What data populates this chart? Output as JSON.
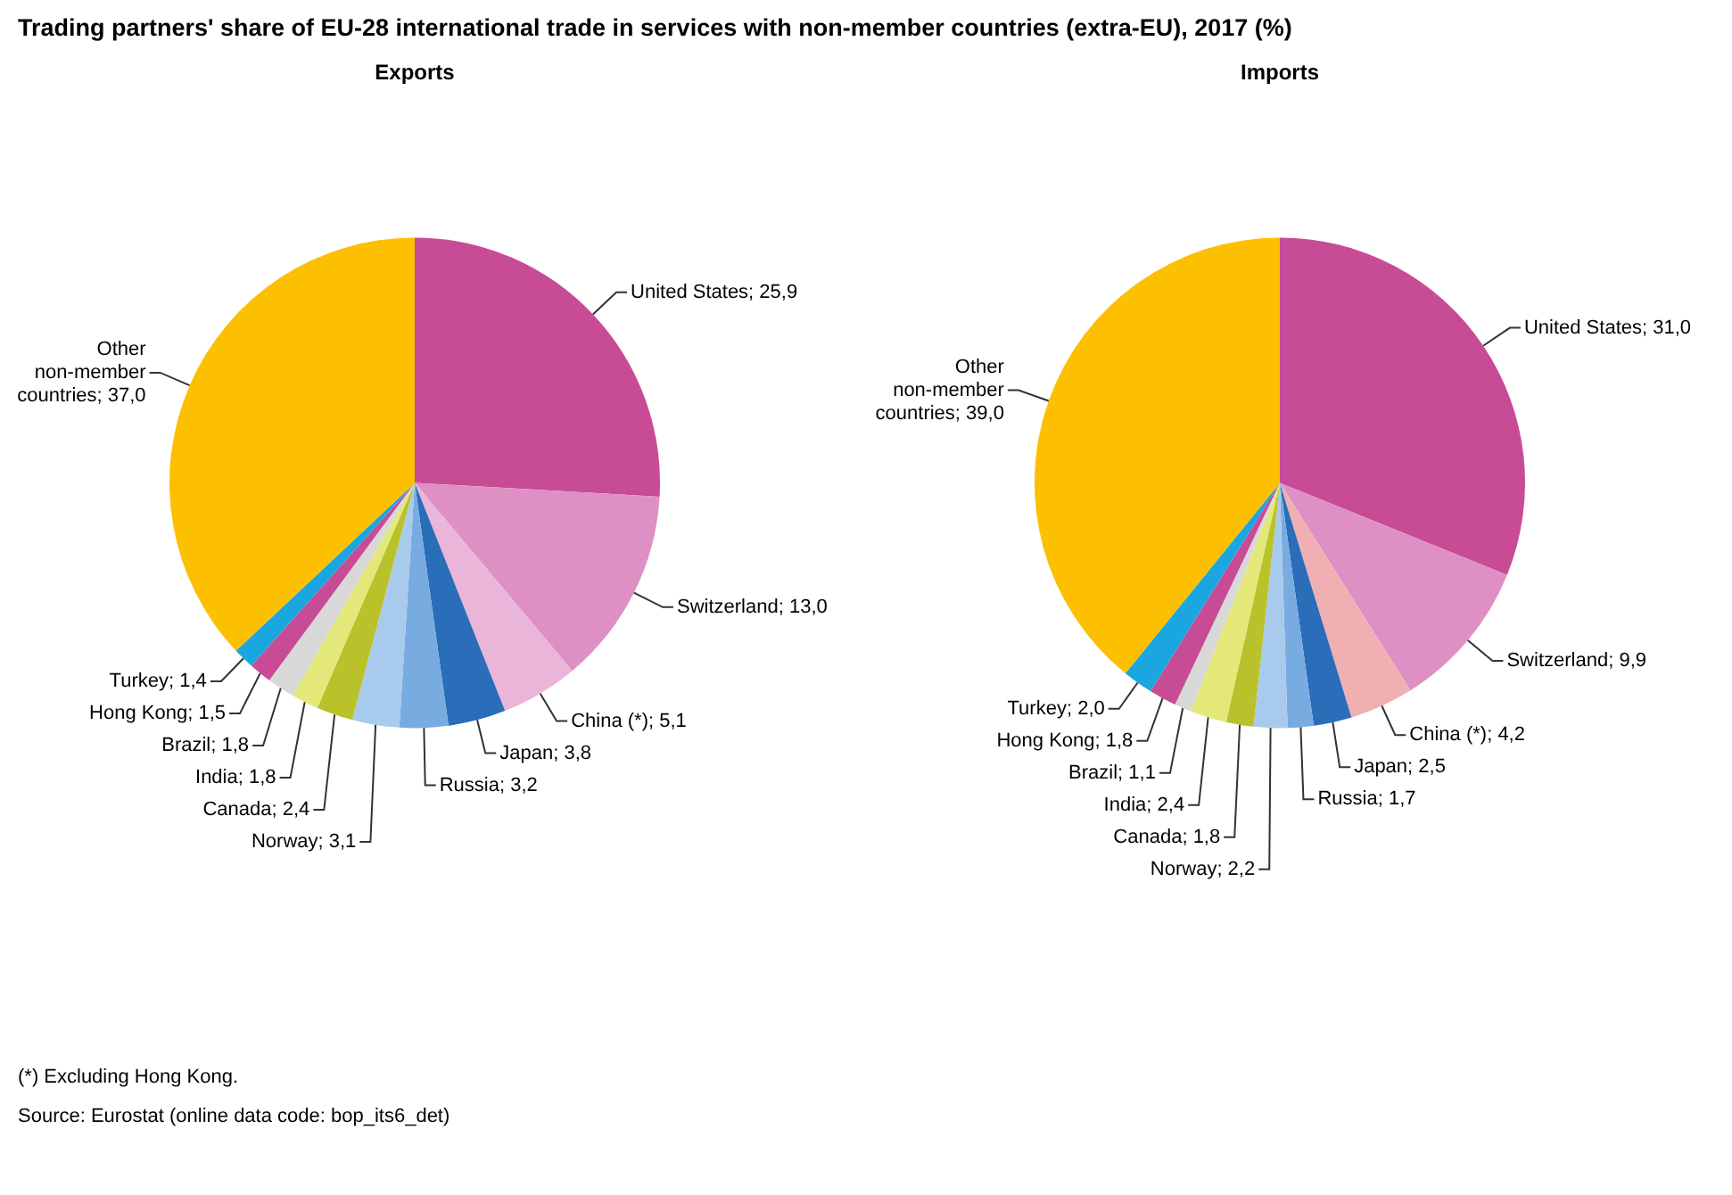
{
  "chart_data": [
    {
      "type": "other",
      "title": "Trading partners' share of EU-28 international trade in services with non-member countries (extra-EU), 2017 (%)",
      "annotations": [
        "(*) Excluding Hong Kong.",
        "Source: Eurostat (online data code: bop_its6_det)"
      ]
    },
    {
      "type": "pie",
      "title": "Exports",
      "categories": [
        "United States",
        "Switzerland",
        "China (*)",
        "Japan",
        "Russia",
        "Norway",
        "Canada",
        "India",
        "Brazil",
        "Hong Kong",
        "Turkey",
        "Other non-member countries"
      ],
      "values": [
        25.9,
        13.0,
        5.1,
        3.8,
        3.2,
        3.1,
        2.4,
        1.8,
        1.8,
        1.5,
        1.4,
        37.0
      ],
      "value_labels": [
        "25,9",
        "13,0",
        "5,1",
        "3,8",
        "3,2",
        "3,1",
        "2,4",
        "1,8",
        "1,8",
        "1,5",
        "1,4",
        "37,0"
      ],
      "colors": [
        "#c84b96",
        "#de90c4",
        "#e9b5d8",
        "#2a6db8",
        "#78abe0",
        "#a8caec",
        "#b9c22a",
        "#e3e878",
        "#d8d8d8",
        "#c84b96",
        "#1aa7e0",
        "#fcc000"
      ]
    },
    {
      "type": "pie",
      "title": "Imports",
      "categories": [
        "United States",
        "Switzerland",
        "China (*)",
        "Japan",
        "Russia",
        "Norway",
        "Canada",
        "India",
        "Brazil",
        "Hong Kong",
        "Turkey",
        "Other non-member countries"
      ],
      "values": [
        31.0,
        9.9,
        4.2,
        2.5,
        1.7,
        2.2,
        1.8,
        2.4,
        1.1,
        1.8,
        2.0,
        39.0
      ],
      "value_labels": [
        "31,0",
        "9,9",
        "4,2",
        "2,5",
        "1,7",
        "2,2",
        "1,8",
        "2,4",
        "1,1",
        "1,8",
        "2,0",
        "39,0"
      ],
      "colors": [
        "#c84b96",
        "#de90c4",
        "#f0b0b2",
        "#2a6db8",
        "#78abe0",
        "#a8caec",
        "#b9c22a",
        "#e3e878",
        "#d8d8d8",
        "#c84b96",
        "#1aa7e0",
        "#fcc000"
      ]
    }
  ]
}
